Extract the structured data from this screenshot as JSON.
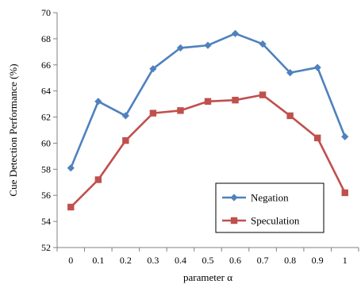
{
  "chart_data": {
    "type": "line",
    "x": [
      "0",
      "0.1",
      "0.2",
      "0.3",
      "0.4",
      "0.5",
      "0.6",
      "0.7",
      "0.8",
      "0.9",
      "1"
    ],
    "series": [
      {
        "name": "Negation",
        "color": "#4F81BD",
        "marker": "diamond",
        "values": [
          58.1,
          63.2,
          62.1,
          65.7,
          67.3,
          67.5,
          68.4,
          67.6,
          65.4,
          65.8,
          60.5
        ]
      },
      {
        "name": "Speculation",
        "color": "#C0504D",
        "marker": "square",
        "values": [
          55.1,
          57.2,
          60.2,
          62.3,
          62.5,
          63.2,
          63.3,
          63.7,
          62.1,
          60.4,
          56.2
        ]
      }
    ],
    "xlabel": "parameter α",
    "ylabel": "Cue Detection Performance (%)",
    "ylim": [
      52,
      70
    ],
    "yticks": [
      "52",
      "54",
      "56",
      "58",
      "60",
      "62",
      "64",
      "66",
      "68",
      "70"
    ],
    "grid": false,
    "legend_position": "bottom-right"
  }
}
